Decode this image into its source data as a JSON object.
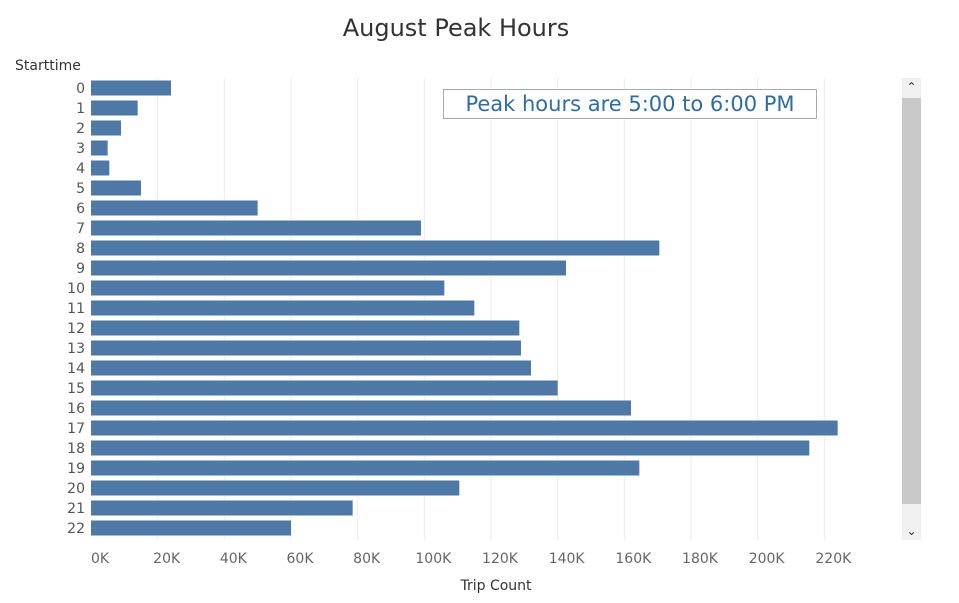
{
  "chart_data": {
    "type": "bar",
    "orientation": "horizontal",
    "title": "August Peak Hours",
    "ylabel": "Starttime",
    "xlabel": "Trip Count",
    "categories": [
      "0",
      "1",
      "2",
      "3",
      "4",
      "5",
      "6",
      "7",
      "8",
      "9",
      "10",
      "11",
      "12",
      "13",
      "14",
      "15",
      "16",
      "17",
      "18",
      "19",
      "20",
      "21",
      "22"
    ],
    "values": [
      24000,
      14000,
      9000,
      5000,
      5500,
      15000,
      50000,
      99000,
      170500,
      142500,
      106000,
      115000,
      128500,
      129000,
      132000,
      140000,
      162000,
      224000,
      215500,
      164500,
      110500,
      78500,
      60000
    ],
    "xlim": [
      0,
      240000
    ],
    "xticks": [
      0,
      20000,
      40000,
      60000,
      80000,
      100000,
      120000,
      140000,
      160000,
      180000,
      200000,
      220000
    ],
    "xtick_labels": [
      "0K",
      "20K",
      "40K",
      "60K",
      "80K",
      "100K",
      "120K",
      "140K",
      "160K",
      "180K",
      "200K",
      "220K"
    ],
    "grid": "vertical",
    "bar_color": "#4e79a7",
    "annotation": "Peak hours are 5:00 to 6:00 PM"
  },
  "annotation_color": "#2e6ca4",
  "scrollbar": {
    "up_icon": "chevron-up-icon",
    "down_icon": "chevron-down-icon"
  }
}
